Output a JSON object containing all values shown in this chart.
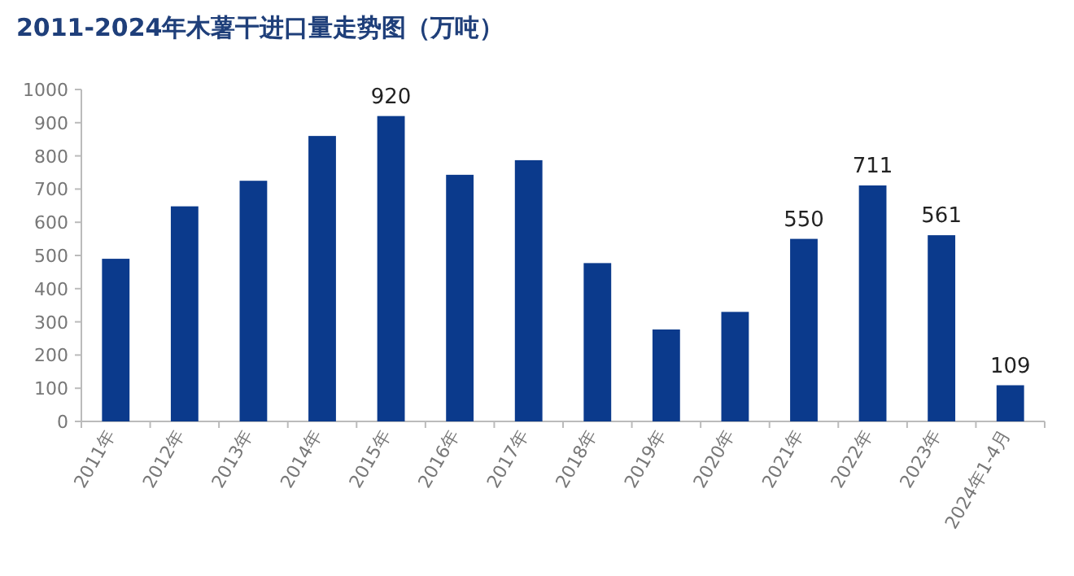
{
  "chart_data": {
    "type": "bar",
    "title": "2011-2024年木薯干进口量走势图（万吨）",
    "categories": [
      "2011年",
      "2012年",
      "2013年",
      "2014年",
      "2015年",
      "2016年",
      "2017年",
      "2018年",
      "2019年",
      "2020年",
      "2021年",
      "2022年",
      "2023年",
      "2024年1-4月"
    ],
    "values": [
      490,
      648,
      725,
      860,
      920,
      743,
      787,
      477,
      277,
      330,
      550,
      711,
      561,
      109
    ],
    "value_labels": [
      null,
      null,
      null,
      null,
      "920",
      null,
      null,
      null,
      null,
      null,
      "550",
      "711",
      "561",
      "109"
    ],
    "color": "#0b3a8c",
    "ylim": [
      0,
      1000
    ],
    "yticks": [
      0,
      100,
      200,
      300,
      400,
      500,
      600,
      700,
      800,
      900,
      1000
    ],
    "grid": false
  }
}
